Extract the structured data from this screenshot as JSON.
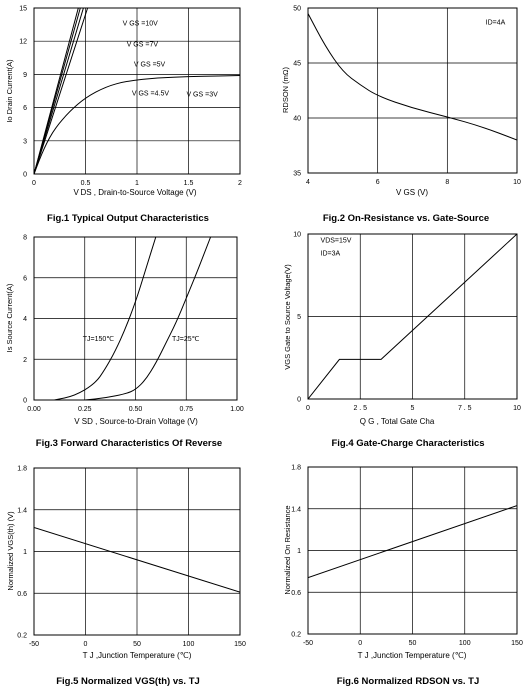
{
  "chart_data": [
    {
      "id": "fig1",
      "type": "line",
      "caption": "Fig.1 Typical Output Characteristics",
      "xlabel": "V DS , Drain-to-Source Voltage (V)",
      "ylabel": "Io Drain Current(A)",
      "xlim": [
        0,
        2
      ],
      "ylim": [
        0,
        15
      ],
      "xticks": [
        "0",
        "0.5",
        "1",
        "1.5",
        "2"
      ],
      "yticks": [
        "0",
        "3",
        "6",
        "9",
        "12",
        "15"
      ],
      "xtick_values": [
        0,
        0.5,
        1,
        1.5,
        2
      ],
      "ytick_values": [
        0,
        3,
        6,
        9,
        12,
        15
      ],
      "grid": true,
      "series": [
        {
          "name": "VGS=10V",
          "x": [
            0,
            0.43
          ],
          "y": [
            0,
            15
          ]
        },
        {
          "name": "VGS=7V",
          "x": [
            0,
            0.45
          ],
          "y": [
            0,
            15
          ]
        },
        {
          "name": "VGS=5V",
          "x": [
            0,
            0.48
          ],
          "y": [
            0,
            15
          ]
        },
        {
          "name": "VGS=4.5V",
          "x": [
            0,
            0.52
          ],
          "y": [
            0,
            15
          ]
        },
        {
          "name": "VGS=3V",
          "x": [
            0,
            0.1,
            0.2,
            0.35,
            0.5,
            0.7,
            0.9,
            1.2,
            1.5,
            1.8,
            2
          ],
          "y": [
            0,
            2.4,
            4.1,
            5.7,
            6.9,
            7.9,
            8.4,
            8.7,
            8.8,
            8.85,
            8.9
          ]
        }
      ],
      "annotations": [
        "V GS =10V",
        "V GS =7V",
        "V GS =5V",
        "V GS =4.5V",
        "V GS =3V"
      ]
    },
    {
      "id": "fig2",
      "type": "line",
      "caption": "Fig.2 On-Resistance vs. Gate-Source",
      "xlabel": "V GS (V)",
      "ylabel": "RDSON (mΩ)",
      "xlim": [
        4,
        10
      ],
      "ylim": [
        35,
        50
      ],
      "xticks": [
        "4",
        "6",
        "8",
        "10"
      ],
      "yticks": [
        "35",
        "40",
        "45",
        "50"
      ],
      "xtick_values": [
        4,
        6,
        8,
        10
      ],
      "ytick_values": [
        35,
        40,
        45,
        50
      ],
      "grid": true,
      "series": [
        {
          "name": "",
          "x": [
            4,
            4.5,
            5,
            5.5,
            6,
            7,
            8,
            9,
            10
          ],
          "y": [
            49.5,
            46.5,
            44.2,
            43,
            42,
            40.9,
            40.1,
            39.2,
            38
          ]
        }
      ],
      "annotations": [
        "ID=4A"
      ]
    },
    {
      "id": "fig3",
      "type": "line",
      "caption": "Fig.3 Forward Characteristics Of Reverse",
      "xlabel": "V SD , Source-to-Drain Voltage (V)",
      "ylabel": "Is Source Current(A)",
      "xlim": [
        0,
        1
      ],
      "ylim": [
        0,
        8
      ],
      "xticks": [
        "0.00",
        "0.25",
        "0.50",
        "0.75",
        "1.00"
      ],
      "yticks": [
        "0",
        "2",
        "4",
        "6",
        "8"
      ],
      "xtick_values": [
        0,
        0.25,
        0.5,
        0.75,
        1
      ],
      "ytick_values": [
        0,
        2,
        4,
        6,
        8
      ],
      "grid": true,
      "series": [
        {
          "name": "TJ=150℃",
          "x": [
            0.1,
            0.2,
            0.3,
            0.35,
            0.4,
            0.45,
            0.5,
            0.55,
            0.6
          ],
          "y": [
            0,
            0.2,
            0.8,
            1.5,
            2.4,
            3.5,
            4.8,
            6.4,
            8
          ]
        },
        {
          "name": "TJ=25℃",
          "x": [
            0.25,
            0.35,
            0.45,
            0.5,
            0.55,
            0.6,
            0.65,
            0.7,
            0.75,
            0.8,
            0.87
          ],
          "y": [
            0,
            0.1,
            0.3,
            0.5,
            1,
            1.8,
            2.8,
            3.8,
            5,
            6.2,
            8
          ]
        }
      ],
      "annotations": [
        "TJ=150℃",
        "TJ=25℃"
      ]
    },
    {
      "id": "fig4",
      "type": "line",
      "caption": "Fig.4 Gate-Charge Characteristics",
      "xlabel": "Q G , Total Gate Cha",
      "ylabel": "VGS Gate to Source Voltage(V)",
      "xlim": [
        0,
        10
      ],
      "ylim": [
        0,
        10
      ],
      "xticks": [
        "0",
        "2 . 5",
        "5",
        "7 . 5",
        "10"
      ],
      "yticks": [
        "0",
        "5",
        "10"
      ],
      "xtick_values": [
        0,
        2.5,
        5,
        7.5,
        10
      ],
      "ytick_values": [
        0,
        5,
        10
      ],
      "grid": true,
      "series": [
        {
          "name": "",
          "x": [
            0,
            1.5,
            3.5,
            10
          ],
          "y": [
            0,
            2.4,
            2.4,
            10
          ]
        }
      ],
      "annotations": [
        "VDS=15V",
        "ID=3A"
      ]
    },
    {
      "id": "fig5",
      "type": "line",
      "caption": "Fig.5 Normalized VGS(th) vs. TJ",
      "xlabel": "T J ,Junction Temperature (℃)",
      "ylabel": "Normalized VGS(th) (V)",
      "xlim": [
        -50,
        150
      ],
      "ylim": [
        0.2,
        1.8
      ],
      "xticks": [
        "-50",
        "0",
        "50",
        "100",
        "150"
      ],
      "yticks": [
        "0.2",
        "0.6",
        "1",
        "1.4",
        "1.8"
      ],
      "xtick_values": [
        -50,
        0,
        50,
        100,
        150
      ],
      "ytick_values": [
        0.2,
        0.6,
        1,
        1.4,
        1.8
      ],
      "grid": true,
      "series": [
        {
          "name": "",
          "x": [
            -50,
            150
          ],
          "y": [
            1.23,
            0.61
          ]
        }
      ],
      "annotations": []
    },
    {
      "id": "fig6",
      "type": "line",
      "caption": "Fig.6 Normalized RDSON vs. TJ",
      "xlabel": "T J ,Junction Temperature (℃)",
      "ylabel": "Normalized On Resistance",
      "xlim": [
        -50,
        150
      ],
      "ylim": [
        0.2,
        1.8
      ],
      "xticks": [
        "-50",
        "0",
        "50",
        "100",
        "150"
      ],
      "yticks": [
        "0.2",
        "0.6",
        "1",
        "1.4",
        "1.8"
      ],
      "xtick_values": [
        -50,
        0,
        50,
        100,
        150
      ],
      "ytick_values": [
        0.2,
        0.6,
        1,
        1.4,
        1.8
      ],
      "grid": true,
      "series": [
        {
          "name": "",
          "x": [
            -50,
            150
          ],
          "y": [
            0.74,
            1.43
          ]
        }
      ],
      "annotations": []
    }
  ]
}
